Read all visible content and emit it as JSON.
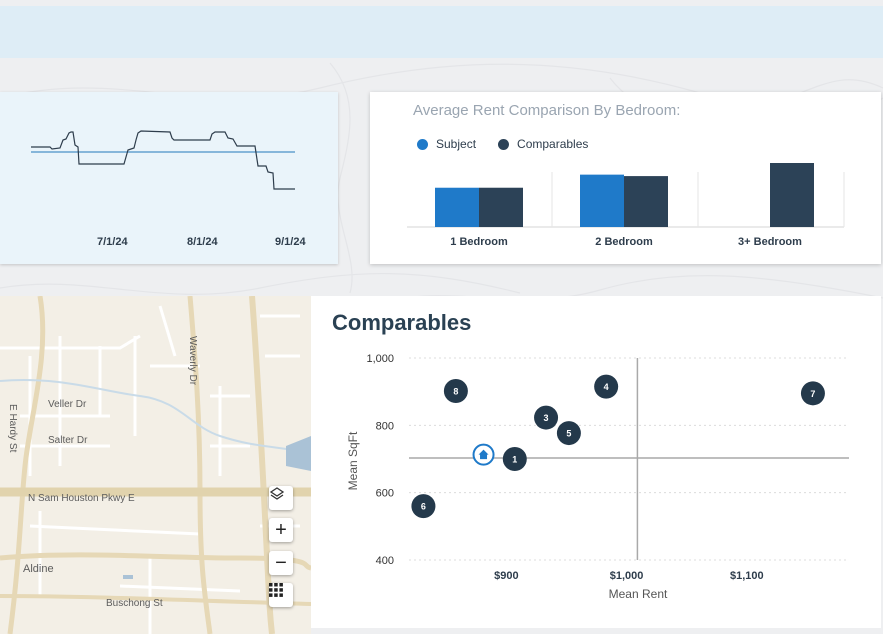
{
  "trend": {
    "x_ticks": [
      "7/1/24",
      "8/1/24",
      "9/1/24"
    ],
    "colors": {
      "line": "#2e3d4c",
      "reference": "#4a90c8"
    }
  },
  "bar_chart": {
    "title": "Average Rent Comparison By Bedroom:",
    "legend": [
      {
        "label": "Subject",
        "color": "#1f7ac9"
      },
      {
        "label": "Comparables",
        "color": "#2c4257"
      }
    ]
  },
  "map": {
    "labels": {
      "waverly": "Waverly Dr",
      "veller": "Veller Dr",
      "hardy": "E Hardy St",
      "salter": "Salter Dr",
      "sam_houston": "N Sam Houston Pkwy E",
      "aldine": "Aldine",
      "buschong": "Buschong St"
    },
    "controls": [
      {
        "name": "layers",
        "icon": "layers-icon"
      },
      {
        "name": "zoom-in",
        "icon": "plus-icon",
        "glyph": "+"
      },
      {
        "name": "zoom-out",
        "icon": "minus-icon",
        "glyph": "−"
      },
      {
        "name": "grid",
        "icon": "grid-icon"
      }
    ]
  },
  "comparables": {
    "title": "Comparables"
  },
  "chart_data": [
    {
      "type": "bar",
      "title": "Average Rent Comparison By Bedroom:",
      "categories": [
        "1 Bedroom",
        "2 Bedroom",
        "3+ Bedroom"
      ],
      "series": [
        {
          "name": "Subject",
          "color": "#1f7ac9",
          "values": [
            27,
            36,
            null
          ]
        },
        {
          "name": "Comparables",
          "color": "#2c4257",
          "values": [
            27,
            35,
            44
          ]
        }
      ],
      "ylim": [
        0,
        55
      ],
      "grid": false,
      "legend": "top-left"
    },
    {
      "type": "scatter",
      "title": "Comparables",
      "xlabel": "Mean Rent",
      "ylabel": "Mean SqFt",
      "x_ticks": [
        {
          "value": 900,
          "label": "$900"
        },
        {
          "value": 1000,
          "label": "$1,000"
        },
        {
          "value": 1100,
          "label": "$1,100"
        }
      ],
      "y_ticks": [
        {
          "value": 400,
          "label": "400"
        },
        {
          "value": 600,
          "label": "600"
        },
        {
          "value": 800,
          "label": "800"
        },
        {
          "value": 1000,
          "label": "1,000"
        }
      ],
      "xlim": [
        819,
        1185
      ],
      "ylim": [
        400,
        1000
      ],
      "mean_lines": {
        "x": 1009,
        "y": 703
      },
      "subject": {
        "label": "subject",
        "x": 881,
        "y": 713,
        "icon": "home-icon"
      },
      "points": [
        {
          "label": "1",
          "x": 907,
          "y": 700
        },
        {
          "label": "3",
          "x": 933,
          "y": 823
        },
        {
          "label": "4",
          "x": 983,
          "y": 915
        },
        {
          "label": "5",
          "x": 952,
          "y": 777
        },
        {
          "label": "6",
          "x": 831,
          "y": 560
        },
        {
          "label": "7",
          "x": 1155,
          "y": 895
        },
        {
          "label": "8",
          "x": 858,
          "y": 902
        }
      ],
      "grid": true,
      "colors": {
        "point": "#24394b",
        "subject": "#1f7ac9",
        "mean_line": "#a9a9a9"
      }
    }
  ]
}
